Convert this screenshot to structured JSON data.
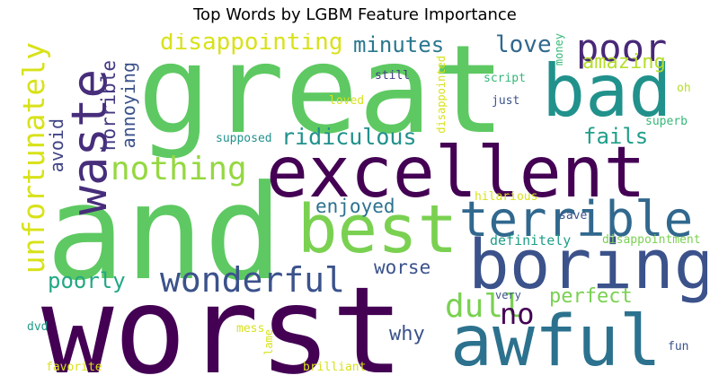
{
  "title": "Top Words by LGBM Feature Importance",
  "words": [
    {
      "text": "great",
      "color": "#5ec962"
    },
    {
      "text": "and",
      "color": "#5ec962"
    },
    {
      "text": "worst",
      "color": "#440154"
    },
    {
      "text": "excellent",
      "color": "#440154"
    },
    {
      "text": "bad",
      "color": "#21918c"
    },
    {
      "text": "boring",
      "color": "#3b528b"
    },
    {
      "text": "awful",
      "color": "#2c728e"
    },
    {
      "text": "best",
      "color": "#7ad151"
    },
    {
      "text": "terrible",
      "color": "#31688e"
    },
    {
      "text": "waste",
      "color": "#472d7b"
    },
    {
      "text": "unfortunately",
      "color": "#d8e219"
    },
    {
      "text": "poor",
      "color": "#482878"
    },
    {
      "text": "nothing",
      "color": "#95d840"
    },
    {
      "text": "wonderful",
      "color": "#3b528b"
    },
    {
      "text": "disappointing",
      "color": "#d8e219"
    },
    {
      "text": "dull",
      "color": "#7ad151"
    },
    {
      "text": "no",
      "color": "#440154"
    },
    {
      "text": "ridiculous",
      "color": "#21918c"
    },
    {
      "text": "love",
      "color": "#31688e"
    },
    {
      "text": "minutes",
      "color": "#2a788e"
    },
    {
      "text": "amazing",
      "color": "#b5de2b"
    },
    {
      "text": "fails",
      "color": "#1f9e89"
    },
    {
      "text": "enjoyed",
      "color": "#2c728e"
    },
    {
      "text": "worse",
      "color": "#3b528b"
    },
    {
      "text": "poorly",
      "color": "#22a884"
    },
    {
      "text": "perfect",
      "color": "#7ad151"
    },
    {
      "text": "why",
      "color": "#3b528b"
    },
    {
      "text": "horrible",
      "color": "#443983"
    },
    {
      "text": "annoying",
      "color": "#3b528b"
    },
    {
      "text": "avoid",
      "color": "#414487"
    },
    {
      "text": "definitely",
      "color": "#1f9e89"
    },
    {
      "text": "supposed",
      "color": "#21918c"
    },
    {
      "text": "still",
      "color": "#433e85"
    },
    {
      "text": "loved",
      "color": "#d8e219"
    },
    {
      "text": "disappointed",
      "color": "#d8e219"
    },
    {
      "text": "money",
      "color": "#35b779"
    },
    {
      "text": "script",
      "color": "#35b779"
    },
    {
      "text": "just",
      "color": "#3b528b"
    },
    {
      "text": "oh",
      "color": "#b5de2b"
    },
    {
      "text": "superb",
      "color": "#35b779"
    },
    {
      "text": "hilarious",
      "color": "#d8e219"
    },
    {
      "text": "save",
      "color": "#3b528b"
    },
    {
      "text": "disappointment",
      "color": "#7ad151"
    },
    {
      "text": "very",
      "color": "#3b528b"
    },
    {
      "text": "dvd",
      "color": "#1f9e89"
    },
    {
      "text": "mess",
      "color": "#d8e219"
    },
    {
      "text": "lame",
      "color": "#d8e219"
    },
    {
      "text": "fun",
      "color": "#3b528b"
    },
    {
      "text": "favorite",
      "color": "#d8e219"
    },
    {
      "text": "brilliant",
      "color": "#d8e219"
    }
  ]
}
